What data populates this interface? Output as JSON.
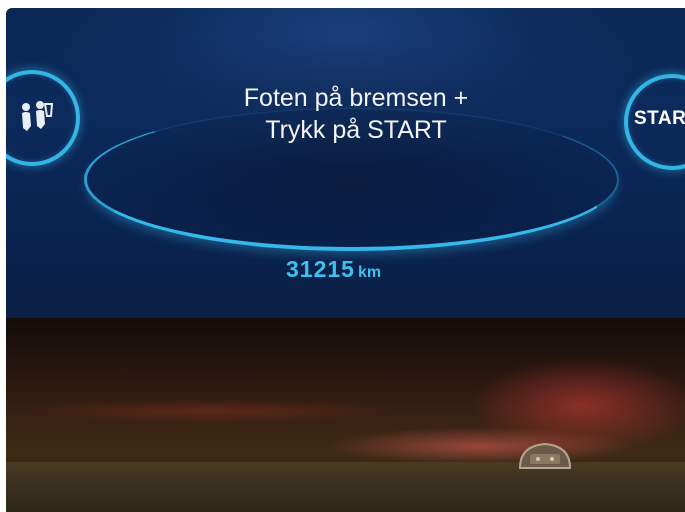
{
  "display": {
    "message_line1": "Foten på bremsen +",
    "message_line2": "Trykk på START",
    "odometer_value": "31215",
    "odometer_unit": "km",
    "start_button_label": "START"
  },
  "icons": {
    "left_ring_icon": "seat-belt-icon",
    "dashboard_indicator": "engine-warning-icon"
  },
  "colors": {
    "accent_cyan": "#33b6e6",
    "screen_background": "#0b2755",
    "text_white": "#f2f4f8"
  }
}
